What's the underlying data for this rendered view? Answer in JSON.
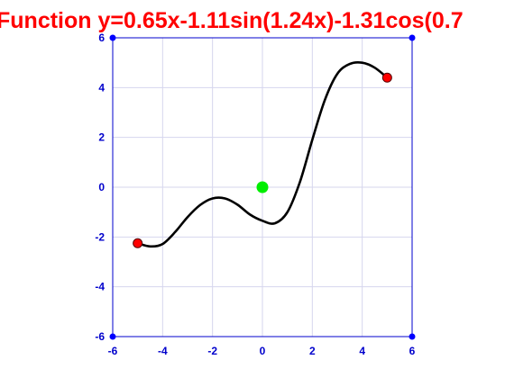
{
  "chart_data": {
    "type": "line",
    "title": "Function y=0.65x-1.11sin(1.24x)-1.31cos(0.7",
    "xlabel": "",
    "ylabel": "",
    "xlim": [
      -6,
      6
    ],
    "ylim": [
      -6,
      6
    ],
    "x_ticks": [
      -6,
      -4,
      -2,
      0,
      2,
      4,
      6
    ],
    "y_ticks": [
      -6,
      -4,
      -2,
      0,
      2,
      4,
      6
    ],
    "x_tick_labels": [
      "-6",
      "-4",
      "-2",
      "0",
      "2",
      "4",
      "6"
    ],
    "y_tick_labels": [
      "-6",
      "-4",
      "-2",
      "0",
      "2",
      "4",
      "6"
    ],
    "grid": true,
    "series": [
      {
        "x": [
          -5.0,
          -4.5,
          -4.0,
          -3.5,
          -3.0,
          -2.5,
          -2.0,
          -1.5,
          -1.0,
          -0.5,
          0.0,
          0.5,
          1.0,
          1.5,
          2.0,
          2.5,
          3.0,
          3.5,
          4.0,
          4.5,
          5.0
        ],
        "y": [
          -2.25,
          -2.38,
          -2.28,
          -1.8,
          -1.2,
          -0.72,
          -0.45,
          -0.45,
          -0.7,
          -1.1,
          -1.35,
          -1.45,
          -1.0,
          0.2,
          1.9,
          3.5,
          4.55,
          4.95,
          5.0,
          4.8,
          4.4
        ]
      }
    ],
    "markers": [
      {
        "x": -5,
        "y": -2.25,
        "color": "#ff0000"
      },
      {
        "x": 5,
        "y": 4.4,
        "color": "#ff0000"
      },
      {
        "x": 0,
        "y": 0,
        "color": "#00ee00"
      }
    ],
    "corner_markers": [
      {
        "x": -6,
        "y": -6
      },
      {
        "x": 6,
        "y": -6
      },
      {
        "x": -6,
        "y": 6
      },
      {
        "x": 6,
        "y": 6
      }
    ],
    "colors": {
      "curve": "#000000",
      "axis": "#0000cc",
      "grid": "#d6d6ee",
      "title": "#ff0000",
      "corner": "#0000ff"
    }
  }
}
